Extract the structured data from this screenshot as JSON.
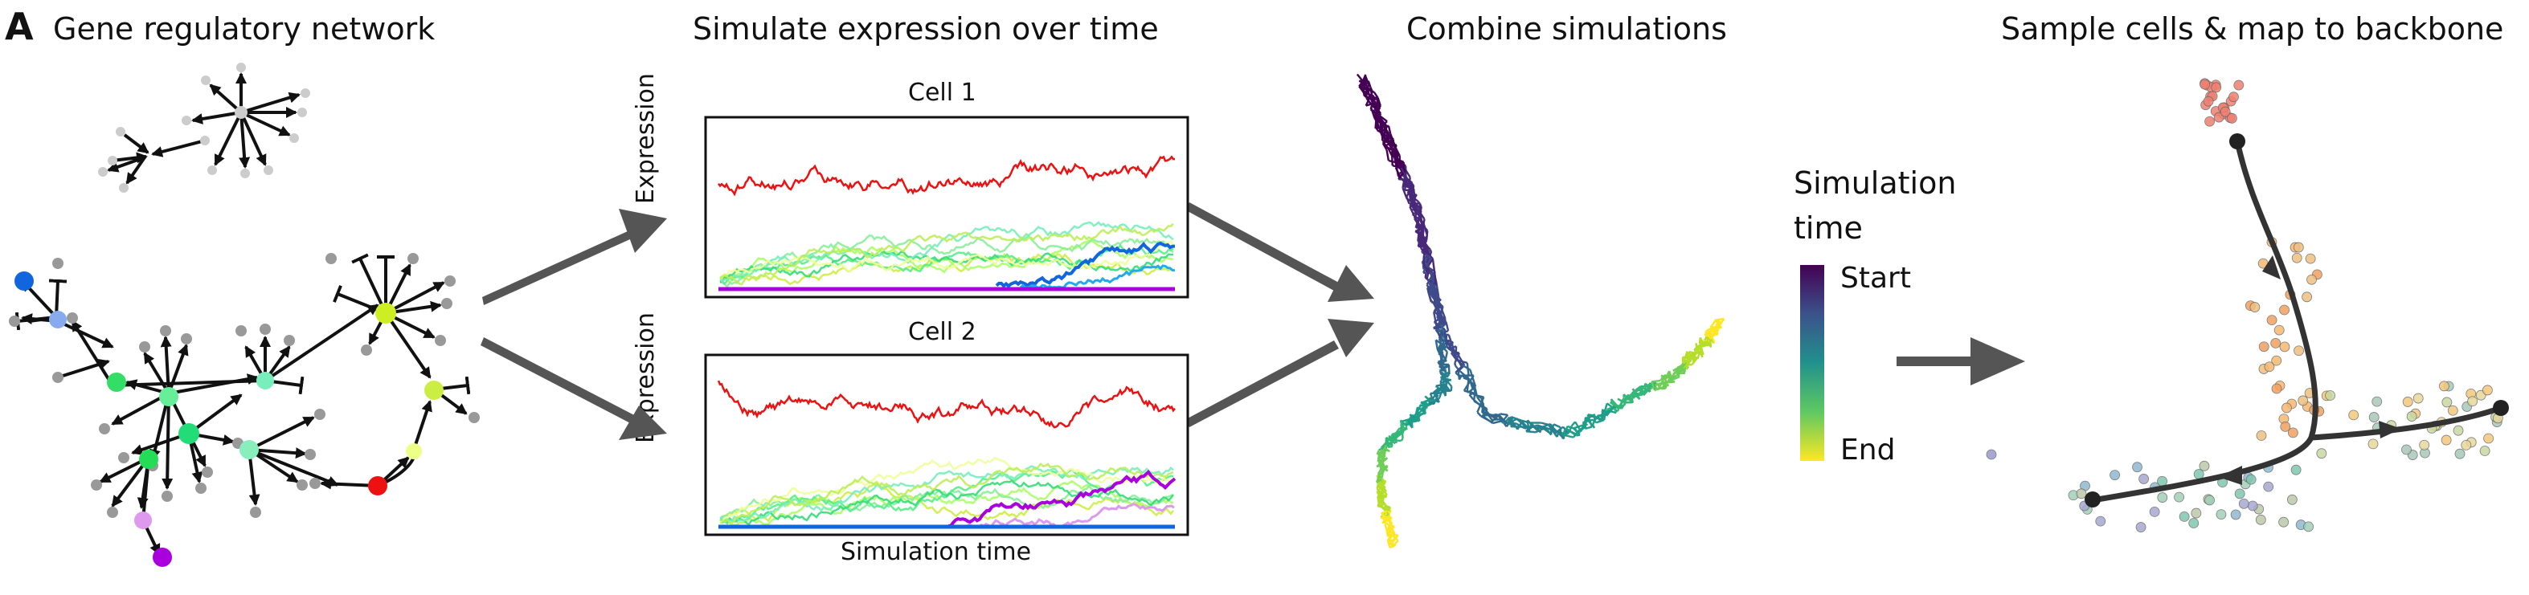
{
  "panel_letter": "A",
  "titles": {
    "grn": "Gene regulatory network",
    "simulate": "Simulate expression over time",
    "combine": "Combine simulations",
    "sample": "Sample cells & map to backbone"
  },
  "cells": {
    "cell1": "Cell 1",
    "cell2": "Cell 2"
  },
  "axes": {
    "ylabel": "Expression",
    "xlabel": "Simulation time"
  },
  "colorbar": {
    "title_line1": "Simulation",
    "title_line2": "time",
    "start": "Start",
    "end": "End"
  },
  "colors": {
    "red": "#ee1111",
    "blue": "#1166dd",
    "purple": "#aa00dd",
    "arrow_gray": "#555555",
    "node_gray": "#999999"
  }
}
